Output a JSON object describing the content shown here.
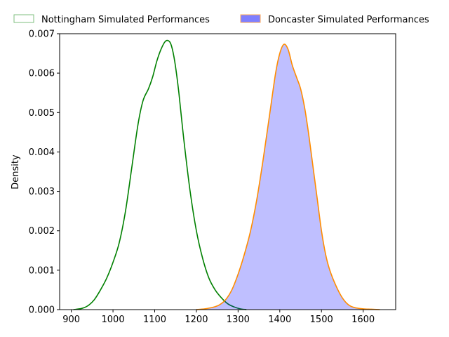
{
  "chart_data": {
    "type": "area",
    "title": "",
    "xlabel": "",
    "ylabel": "Density",
    "xlim": [
      872,
      1678
    ],
    "ylim": [
      0,
      0.007
    ],
    "x_ticks": [
      900,
      1000,
      1100,
      1200,
      1300,
      1400,
      1500,
      1600
    ],
    "x_tick_labels": [
      "900",
      "1000",
      "1100",
      "1200",
      "1300",
      "1400",
      "1500",
      "1600"
    ],
    "y_ticks": [
      0,
      0.001,
      0.002,
      0.003,
      0.004,
      0.005,
      0.006,
      0.007
    ],
    "y_tick_labels": [
      "0.000",
      "0.001",
      "0.002",
      "0.003",
      "0.004",
      "0.005",
      "0.006",
      "0.007"
    ],
    "grid": false,
    "legend": {
      "placement": "top",
      "orientation": "horizontal"
    },
    "series": [
      {
        "name": "Nottingham Simulated Performances",
        "line_color": "#008000",
        "legend_edge_color": "#7fbf7f",
        "filled": false,
        "points": [
          [
            905,
            0.0
          ],
          [
            925,
            3e-05
          ],
          [
            940,
            0.0001
          ],
          [
            955,
            0.00025
          ],
          [
            970,
            0.0005
          ],
          [
            985,
            0.0008
          ],
          [
            1000,
            0.0012
          ],
          [
            1015,
            0.0017
          ],
          [
            1030,
            0.0025
          ],
          [
            1045,
            0.0036
          ],
          [
            1060,
            0.0047
          ],
          [
            1072,
            0.0053
          ],
          [
            1085,
            0.0056
          ],
          [
            1095,
            0.0059
          ],
          [
            1105,
            0.0063
          ],
          [
            1115,
            0.0066
          ],
          [
            1125,
            0.0068
          ],
          [
            1133,
            0.00682
          ],
          [
            1140,
            0.0067
          ],
          [
            1148,
            0.0063
          ],
          [
            1158,
            0.0055
          ],
          [
            1170,
            0.0043
          ],
          [
            1185,
            0.003
          ],
          [
            1200,
            0.002
          ],
          [
            1215,
            0.0013
          ],
          [
            1230,
            0.0008
          ],
          [
            1245,
            0.0005
          ],
          [
            1260,
            0.0003
          ],
          [
            1275,
            0.00015
          ],
          [
            1290,
            7e-05
          ],
          [
            1305,
            2e-05
          ],
          [
            1320,
            0.0
          ]
        ]
      },
      {
        "name": "Doncaster Simulated Performances",
        "line_color": "#ff8c00",
        "fill_color": "#0000ff",
        "fill_opacity": 0.25,
        "legend_fill_color": "#7f7fff",
        "legend_edge_color": "#ffaa55",
        "filled": true,
        "points": [
          [
            1200,
            0.0
          ],
          [
            1220,
            2e-05
          ],
          [
            1240,
            6e-05
          ],
          [
            1255,
            0.00012
          ],
          [
            1270,
            0.00025
          ],
          [
            1285,
            0.0005
          ],
          [
            1300,
            0.0009
          ],
          [
            1315,
            0.0014
          ],
          [
            1330,
            0.002
          ],
          [
            1345,
            0.0028
          ],
          [
            1360,
            0.0038
          ],
          [
            1375,
            0.0049
          ],
          [
            1390,
            0.006
          ],
          [
            1400,
            0.0065
          ],
          [
            1410,
            0.00673
          ],
          [
            1420,
            0.0066
          ],
          [
            1430,
            0.0062
          ],
          [
            1440,
            0.0059
          ],
          [
            1450,
            0.0056
          ],
          [
            1460,
            0.0051
          ],
          [
            1470,
            0.0044
          ],
          [
            1480,
            0.0036
          ],
          [
            1490,
            0.0028
          ],
          [
            1500,
            0.002
          ],
          [
            1510,
            0.0014
          ],
          [
            1520,
            0.001
          ],
          [
            1535,
            0.0006
          ],
          [
            1550,
            0.0003
          ],
          [
            1565,
            0.00012
          ],
          [
            1580,
            5e-05
          ],
          [
            1600,
            2e-05
          ],
          [
            1620,
            1e-05
          ],
          [
            1640,
            0.0
          ]
        ]
      }
    ]
  }
}
